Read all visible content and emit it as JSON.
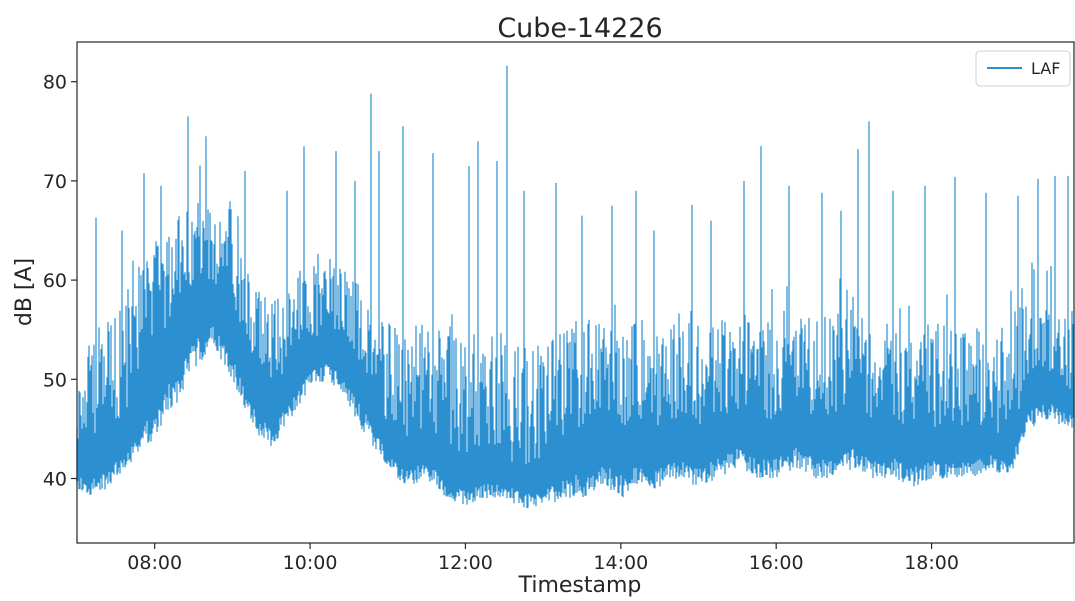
{
  "chart_data": {
    "type": "line",
    "title": "Cube-14226",
    "xlabel": "Timestamp",
    "ylabel": "dB [A]",
    "x_range": [
      "07:00",
      "19:50"
    ],
    "x_ticks": [
      "08:00",
      "10:00",
      "12:00",
      "14:00",
      "16:00",
      "18:00"
    ],
    "y_ticks": [
      40,
      50,
      60,
      70,
      80
    ],
    "ylim": [
      33.5,
      84
    ],
    "grid": false,
    "legend": {
      "position": "top-right"
    },
    "series": [
      {
        "name": "LAF",
        "color": "#2b8fd0",
        "x": [
          "07:00",
          "07:15",
          "07:30",
          "07:45",
          "08:00",
          "08:15",
          "08:30",
          "08:45",
          "09:00",
          "09:15",
          "09:30",
          "09:45",
          "10:00",
          "10:15",
          "10:30",
          "10:45",
          "11:00",
          "11:15",
          "11:30",
          "11:45",
          "12:00",
          "12:15",
          "12:30",
          "12:45",
          "13:00",
          "13:15",
          "13:30",
          "13:45",
          "14:00",
          "14:15",
          "14:30",
          "14:45",
          "15:00",
          "15:15",
          "15:30",
          "15:45",
          "16:00",
          "16:15",
          "16:30",
          "16:45",
          "17:00",
          "17:15",
          "17:30",
          "17:45",
          "18:00",
          "18:15",
          "18:30",
          "18:45",
          "19:00",
          "19:15",
          "19:30",
          "19:45"
        ],
        "low": [
          39,
          38,
          40,
          42,
          44,
          47,
          51,
          53,
          50,
          45,
          43,
          46,
          49,
          50,
          47,
          44,
          41,
          39,
          40,
          38,
          37,
          38,
          38,
          37,
          37,
          38,
          38,
          39,
          38,
          39,
          39,
          40,
          39,
          40,
          41,
          40,
          40,
          41,
          40,
          40,
          41,
          40,
          40,
          39,
          40,
          40,
          40,
          41,
          40,
          45,
          46,
          45
        ],
        "mid": [
          43,
          44,
          45,
          47,
          53,
          57,
          59,
          60,
          57,
          52,
          49,
          51,
          54,
          55,
          53,
          50,
          45,
          44,
          45,
          43,
          42,
          43,
          42,
          41,
          42,
          44,
          45,
          46,
          45,
          46,
          45,
          46,
          45,
          46,
          47,
          46,
          46,
          47,
          46,
          46,
          47,
          46,
          46,
          45,
          45,
          45,
          45,
          45,
          44,
          50,
          51,
          49
        ],
        "high": [
          52,
          55,
          58,
          62,
          64,
          66,
          68,
          68,
          64,
          60,
          58,
          60,
          62,
          62,
          61,
          58,
          56,
          55,
          56,
          55,
          54,
          55,
          55,
          54,
          54,
          55,
          56,
          56,
          55,
          56,
          56,
          57,
          56,
          57,
          57,
          56,
          57,
          57,
          56,
          57,
          57,
          56,
          56,
          55,
          56,
          56,
          55,
          56,
          55,
          62,
          62,
          61
        ],
        "peaks": [
          [
            "07:15",
            66.3
          ],
          [
            "07:35",
            65
          ],
          [
            "07:52",
            70.8
          ],
          [
            "08:05",
            69.5
          ],
          [
            "08:26",
            76.5
          ],
          [
            "08:40",
            74.5
          ],
          [
            "09:10",
            71
          ],
          [
            "09:42",
            69
          ],
          [
            "09:55",
            73.5
          ],
          [
            "10:20",
            73
          ],
          [
            "10:35",
            70
          ],
          [
            "10:47",
            78.8
          ],
          [
            "10:53",
            73
          ],
          [
            "11:12",
            75.5
          ],
          [
            "11:35",
            72.8
          ],
          [
            "12:03",
            71.5
          ],
          [
            "12:10",
            74
          ],
          [
            "12:24",
            72
          ],
          [
            "12:32",
            81.6
          ],
          [
            "12:45",
            69
          ],
          [
            "13:10",
            69.8
          ],
          [
            "13:30",
            66.5
          ],
          [
            "13:53",
            67.5
          ],
          [
            "14:12",
            69
          ],
          [
            "14:26",
            65
          ],
          [
            "14:55",
            67.6
          ],
          [
            "15:10",
            66
          ],
          [
            "15:35",
            70
          ],
          [
            "15:48",
            73.5
          ],
          [
            "16:10",
            69.5
          ],
          [
            "16:35",
            68.8
          ],
          [
            "16:50",
            67
          ],
          [
            "17:03",
            73.2
          ],
          [
            "17:12",
            76
          ],
          [
            "17:30",
            69
          ],
          [
            "17:55",
            69.5
          ],
          [
            "18:18",
            70.4
          ],
          [
            "18:42",
            68.8
          ],
          [
            "19:07",
            68.5
          ],
          [
            "19:22",
            70.2
          ],
          [
            "19:35",
            70.5
          ],
          [
            "19:45",
            70.5
          ]
        ]
      }
    ]
  }
}
